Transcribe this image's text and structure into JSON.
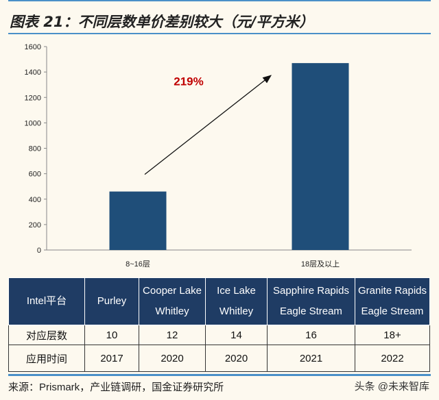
{
  "title": "图表 21：不同层数单价差别较大（元/平方米）",
  "chart_data": {
    "type": "bar",
    "categories": [
      "8~16层",
      "18层及以上"
    ],
    "values": [
      460,
      1470
    ],
    "ylim": [
      0,
      1600
    ],
    "yticks": [
      0,
      200,
      400,
      600,
      800,
      1000,
      1200,
      1400,
      1600
    ],
    "bar_color": "#1f4e79",
    "annotation": "219%",
    "annotation_color": "#c00000",
    "grid": false
  },
  "table": {
    "header": [
      "Intel平台",
      "Purley",
      "Cooper Lake\nWhitley",
      "Ice Lake\nWhitley",
      "Sapphire Rapids\nEagle Stream",
      "Granite Rapids\nEagle Stream"
    ],
    "rows": [
      [
        "对应层数",
        "10",
        "12",
        "14",
        "16",
        "18+"
      ],
      [
        "应用时间",
        "2017",
        "2020",
        "2020",
        "2021",
        "2022"
      ]
    ]
  },
  "source": "来源：Prismark，产业链调研，国金证券研究所",
  "watermark": "头条 @未来智库"
}
